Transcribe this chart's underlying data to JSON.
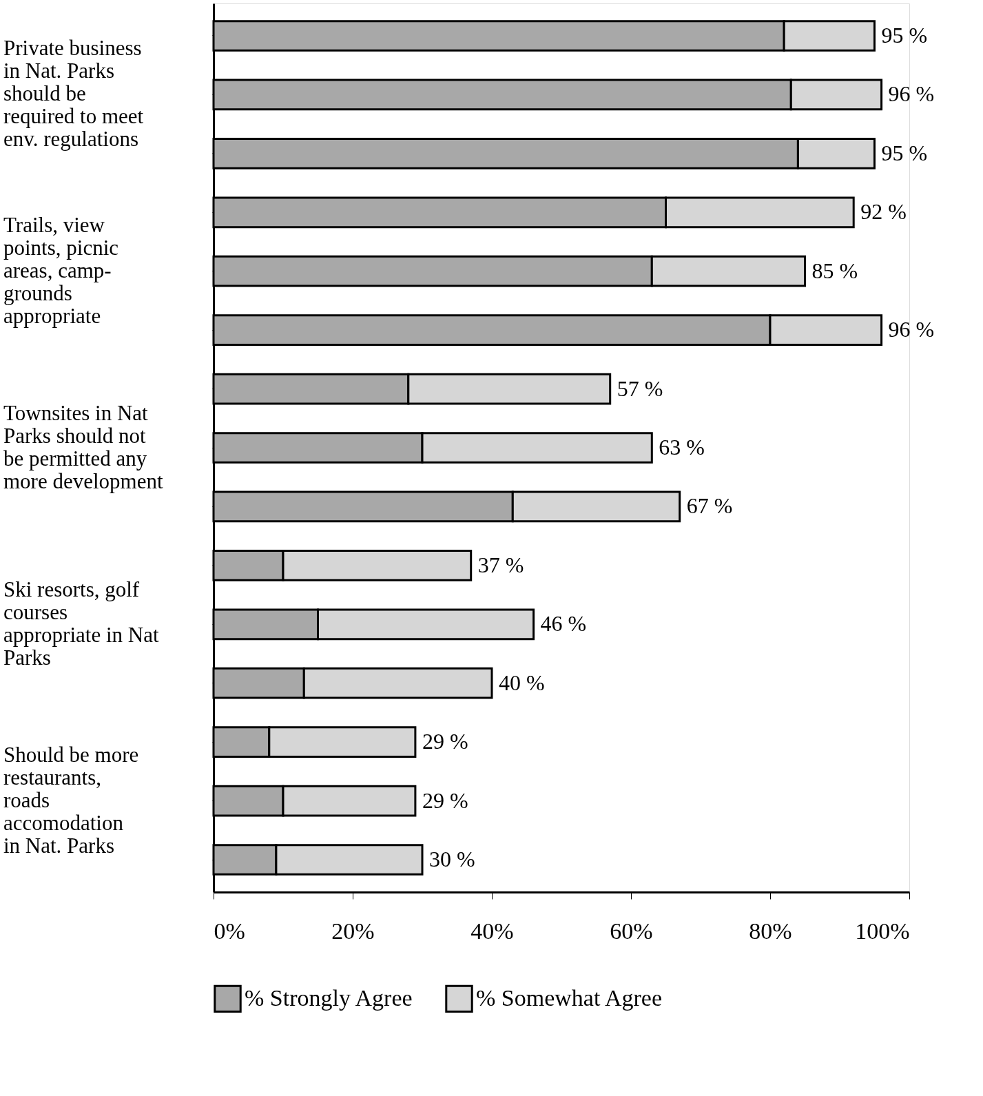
{
  "chart_data": {
    "type": "bar",
    "orientation": "horizontal",
    "stacked": true,
    "categories": [
      null,
      "Private business\nin Nat. Parks\nshould be\nrequired to meet\nenv. regulations",
      null,
      null,
      "Trails, view\npoints, picnic\nareas, camp-\ngrounds\nappropriate",
      null,
      null,
      "Townsites in Nat\nParks should not\nbe permitted any\nmore development",
      null,
      null,
      "Ski resorts, golf\ncourses\nappropriate in Nat\nParks",
      null,
      null,
      "Should be more\nrestaurants,\nroads\naccomodation\nin Nat. Parks",
      null
    ],
    "series": [
      {
        "name": "% Strongly Agree",
        "color": "#a8a8a8",
        "values": [
          82,
          83,
          84,
          65,
          63,
          80,
          28,
          30,
          43,
          10,
          15,
          13,
          8,
          10,
          9
        ]
      },
      {
        "name": "% Somewhat Agree",
        "color": "#d6d6d6",
        "values": [
          13,
          13,
          11,
          27,
          22,
          16,
          29,
          33,
          24,
          27,
          31,
          27,
          21,
          19,
          21
        ]
      }
    ],
    "totals": [
      "95 %",
      "96 %",
      "95 %",
      "92 %",
      "85 %",
      "96 %",
      "57 %",
      "63 %",
      "67 %",
      "37 %",
      "46 %",
      "40 %",
      "29 %",
      "29 %",
      "30 %"
    ],
    "xlim": [
      0,
      100
    ],
    "xticks": [
      {
        "value": 0,
        "label": "0%"
      },
      {
        "value": 20,
        "label": "20%"
      },
      {
        "value": 40,
        "label": "40%"
      },
      {
        "value": 60,
        "label": "60%"
      },
      {
        "value": 80,
        "label": "80%"
      },
      {
        "value": 100,
        "label": "100%"
      }
    ],
    "grid": false,
    "legend": "bottom"
  }
}
